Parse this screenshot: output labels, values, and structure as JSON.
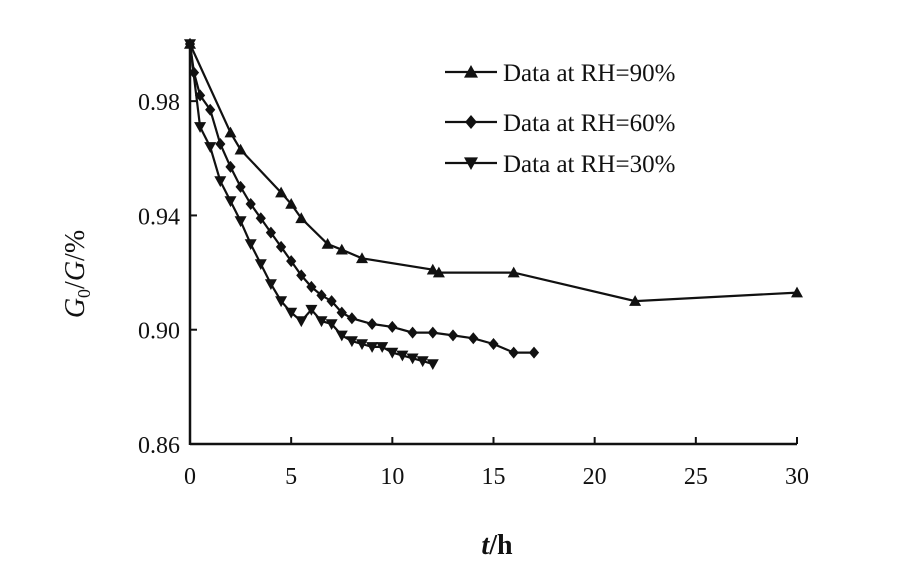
{
  "chart_data": {
    "type": "line",
    "title": "",
    "xlabel": "t/h",
    "xlabel_parts": {
      "italic": "t",
      "rest": "/h"
    },
    "ylabel": "G0/G/%",
    "xlim": [
      0,
      30
    ],
    "ylim": [
      0.86,
      1.0
    ],
    "xticks": [
      0,
      5,
      10,
      15,
      20,
      25,
      30
    ],
    "xtick_labels": [
      "0",
      "5",
      "10",
      "15",
      "20",
      "25",
      "30"
    ],
    "yticks": [
      0.86,
      0.9,
      0.94,
      0.98
    ],
    "ytick_labels": [
      "0.86",
      "0.90",
      "0.94",
      "0.98"
    ],
    "grid": false,
    "legend_position": "top-right",
    "series": [
      {
        "name": "Data at RH=90%",
        "marker": "triangle-up",
        "x": [
          0,
          2,
          2.5,
          4.5,
          5,
          5.5,
          6.8,
          7.5,
          8.5,
          12,
          12.3,
          16,
          22,
          30
        ],
        "y": [
          1.0,
          0.969,
          0.963,
          0.948,
          0.944,
          0.939,
          0.93,
          0.928,
          0.925,
          0.921,
          0.92,
          0.92,
          0.91,
          0.913
        ]
      },
      {
        "name": "Data at RH=60%",
        "marker": "diamond",
        "x": [
          0,
          0.2,
          0.5,
          1.0,
          1.5,
          2.0,
          2.5,
          3.0,
          3.5,
          4.0,
          4.5,
          5.0,
          5.5,
          6.0,
          6.5,
          7.0,
          7.5,
          8.0,
          9.0,
          10.0,
          11.0,
          12.0,
          13.0,
          14.0,
          15.0,
          16.0,
          17.0
        ],
        "y": [
          1.0,
          0.99,
          0.982,
          0.977,
          0.965,
          0.957,
          0.95,
          0.944,
          0.939,
          0.934,
          0.929,
          0.924,
          0.919,
          0.915,
          0.912,
          0.91,
          0.906,
          0.904,
          0.902,
          0.901,
          0.899,
          0.899,
          0.898,
          0.897,
          0.895,
          0.892,
          0.892
        ]
      },
      {
        "name": "Data at RH=30%",
        "marker": "triangle-down",
        "x": [
          0,
          0.5,
          1.0,
          1.5,
          2.0,
          2.5,
          3.0,
          3.5,
          4.0,
          4.5,
          5.0,
          5.5,
          6.0,
          6.5,
          7.0,
          7.5,
          8.0,
          8.5,
          9.0,
          9.5,
          10.0,
          10.5,
          11.0,
          11.5,
          12.0
        ],
        "y": [
          1.0,
          0.971,
          0.964,
          0.952,
          0.945,
          0.938,
          0.93,
          0.923,
          0.916,
          0.91,
          0.906,
          0.903,
          0.907,
          0.903,
          0.902,
          0.898,
          0.896,
          0.895,
          0.894,
          0.894,
          0.892,
          0.891,
          0.89,
          0.889,
          0.888
        ]
      }
    ]
  }
}
